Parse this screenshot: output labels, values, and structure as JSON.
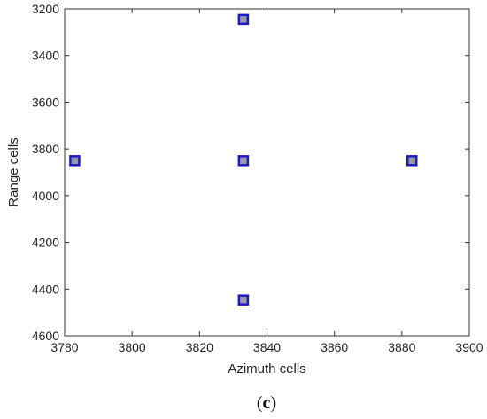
{
  "chart_data": {
    "type": "scatter",
    "title": "",
    "xlabel": "Azimuth cells",
    "ylabel": "Range cells",
    "xlim": [
      3780,
      3900
    ],
    "ylim": [
      3200,
      4600
    ],
    "y_reversed": true,
    "xticks": [
      "3780",
      "3800",
      "3820",
      "3840",
      "3860",
      "3880",
      "3900"
    ],
    "yticks": [
      "3200",
      "3400",
      "3600",
      "3800",
      "4000",
      "4200",
      "4400",
      "4600"
    ],
    "grid": false,
    "legend": "none",
    "series": [
      {
        "marker": "square",
        "points": [
          {
            "x": 3833,
            "y": 3245
          },
          {
            "x": 3783,
            "y": 3850
          },
          {
            "x": 3833,
            "y": 3850
          },
          {
            "x": 3883,
            "y": 3850
          },
          {
            "x": 3833,
            "y": 4447
          }
        ]
      }
    ]
  },
  "figure": {
    "panel_label_open": "(",
    "panel_label_letter": "c",
    "panel_label_close": ")"
  },
  "colors": {
    "marker_edge": "#1a1acc",
    "marker_fill": "#9a9a9a",
    "axis": "#333333"
  }
}
